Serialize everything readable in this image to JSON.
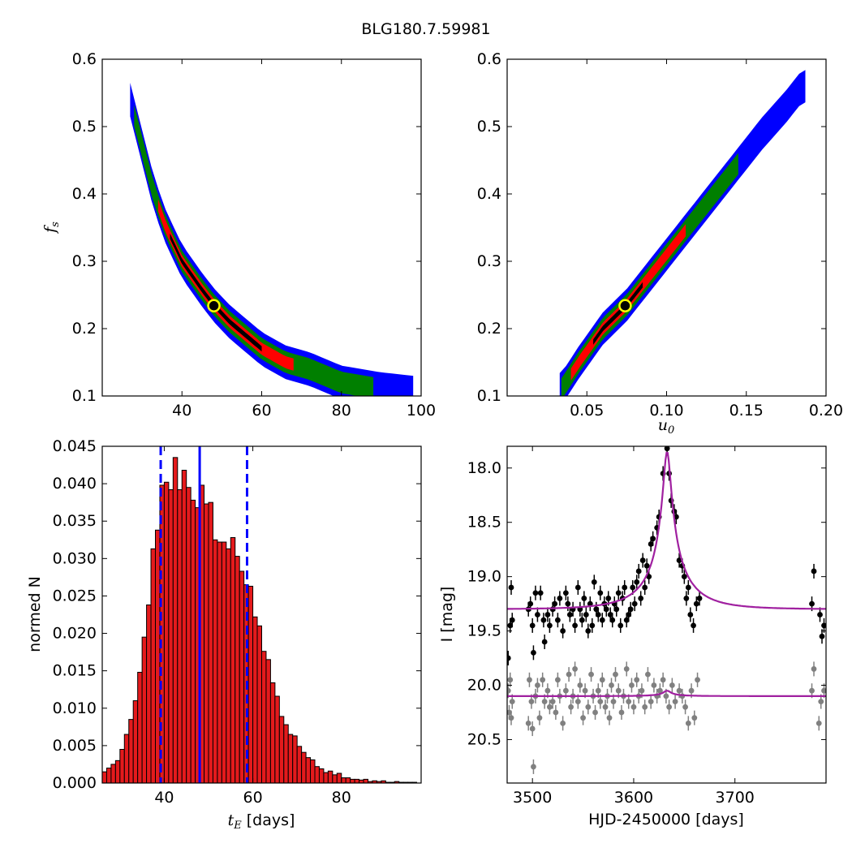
{
  "figure_title": "BLG180.7.59981",
  "colors": {
    "blue_region": "#0000ff",
    "green_region": "#007f00",
    "red_region": "#ff0000",
    "black_region": "#000000",
    "best_fit_marker_fill": "#000000",
    "best_fit_marker_edge": "#ffff00",
    "histogram_bar": "#e41a1c",
    "vline": "#0000ff",
    "model_curve": "#a020a0",
    "points_primary": "#000000",
    "points_secondary": "#808080"
  },
  "chart_data": [
    {
      "id": "fs_vs_tE",
      "type": "heatmap",
      "title": "",
      "xlabel": "",
      "ylabel": "f_s",
      "xlim": [
        20,
        100
      ],
      "ylim": [
        0.1,
        0.6
      ],
      "xticks": [
        40,
        60,
        80,
        100
      ],
      "yticks": [
        0.1,
        0.2,
        0.3,
        0.4,
        0.5,
        0.6
      ],
      "xticklabels": [
        "40",
        "60",
        "80",
        "100"
      ],
      "yticklabels": [
        "0.1",
        "0.2",
        "0.3",
        "0.4",
        "0.5",
        "0.6"
      ],
      "ridge": [
        [
          27,
          0.54
        ],
        [
          30,
          0.47
        ],
        [
          33,
          0.4
        ],
        [
          36,
          0.35
        ],
        [
          40,
          0.3
        ],
        [
          45,
          0.258
        ],
        [
          48,
          0.235
        ],
        [
          52,
          0.21
        ],
        [
          56,
          0.19
        ],
        [
          60,
          0.17
        ],
        [
          66,
          0.15
        ],
        [
          72,
          0.14
        ],
        [
          80,
          0.12
        ],
        [
          90,
          0.11
        ],
        [
          98,
          0.105
        ]
      ],
      "confidence_regions": [
        {
          "level": "blue",
          "x_range": [
            27,
            98
          ],
          "half_width": 0.025
        },
        {
          "level": "green",
          "x_range": [
            28,
            88
          ],
          "half_width": 0.016
        },
        {
          "level": "red",
          "x_range": [
            34,
            68
          ],
          "half_width": 0.009
        },
        {
          "level": "black",
          "x_range": [
            37,
            60
          ],
          "half_width": 0.004
        }
      ],
      "best_fit": {
        "x": 48,
        "y": 0.234
      }
    },
    {
      "id": "fs_vs_u0",
      "type": "heatmap",
      "title": "",
      "xlabel": "u_0",
      "ylabel": "",
      "xlim": [
        0.0,
        0.2
      ],
      "ylim": [
        0.1,
        0.6
      ],
      "xticks": [
        0.05,
        0.1,
        0.15,
        0.2
      ],
      "yticks": [
        0.1,
        0.2,
        0.3,
        0.4,
        0.5,
        0.6
      ],
      "xticklabels": [
        "0.05",
        "0.10",
        "0.15",
        "0.20"
      ],
      "yticklabels": [
        "0.1",
        "0.2",
        "0.3",
        "0.4",
        "0.5",
        "0.6"
      ],
      "ridge": [
        [
          0.034,
          0.11
        ],
        [
          0.045,
          0.15
        ],
        [
          0.06,
          0.2
        ],
        [
          0.075,
          0.235
        ],
        [
          0.09,
          0.28
        ],
        [
          0.105,
          0.325
        ],
        [
          0.12,
          0.37
        ],
        [
          0.14,
          0.43
        ],
        [
          0.16,
          0.49
        ],
        [
          0.175,
          0.53
        ],
        [
          0.185,
          0.56
        ]
      ],
      "confidence_regions": [
        {
          "level": "blue",
          "x_range": [
            0.033,
            0.187
          ],
          "half_width": 0.024
        },
        {
          "level": "green",
          "x_range": [
            0.034,
            0.145
          ],
          "half_width": 0.016
        },
        {
          "level": "red",
          "x_range": [
            0.04,
            0.112
          ],
          "half_width": 0.009
        },
        {
          "level": "black",
          "x_range": [
            0.054,
            0.085
          ],
          "half_width": 0.004
        }
      ],
      "best_fit": {
        "x": 0.074,
        "y": 0.234
      }
    },
    {
      "id": "tE_histogram",
      "type": "bar",
      "title": "",
      "xlabel": "t_E [days]",
      "ylabel": "normed N",
      "xlim": [
        26,
        98
      ],
      "ylim": [
        0.0,
        0.045
      ],
      "xticks": [
        40,
        60,
        80
      ],
      "yticks": [
        0.0,
        0.005,
        0.01,
        0.015,
        0.02,
        0.025,
        0.03,
        0.035,
        0.04,
        0.045
      ],
      "xticklabels": [
        "40",
        "60",
        "80"
      ],
      "yticklabels": [
        "0.000",
        "0.005",
        "0.010",
        "0.015",
        "0.020",
        "0.025",
        "0.030",
        "0.035",
        "0.040",
        "0.045"
      ],
      "bin_start": 26,
      "bin_width": 1,
      "values": [
        0.0015,
        0.002,
        0.0025,
        0.003,
        0.0045,
        0.0065,
        0.0085,
        0.011,
        0.0148,
        0.0195,
        0.0238,
        0.0313,
        0.0338,
        0.0398,
        0.0402,
        0.0392,
        0.0435,
        0.0392,
        0.0418,
        0.0395,
        0.0378,
        0.0368,
        0.0398,
        0.0373,
        0.0375,
        0.0325,
        0.0322,
        0.0322,
        0.0313,
        0.0328,
        0.0303,
        0.0283,
        0.0265,
        0.0263,
        0.0222,
        0.021,
        0.0176,
        0.0165,
        0.0134,
        0.0116,
        0.0089,
        0.0078,
        0.0065,
        0.0063,
        0.0049,
        0.0041,
        0.0034,
        0.0031,
        0.0022,
        0.0019,
        0.0014,
        0.0016,
        0.0011,
        0.0013,
        0.0007,
        0.0007,
        0.0005,
        0.0005,
        0.0004,
        0.0005,
        0.0002,
        0.0003,
        0.0002,
        0.0003,
        0.0001,
        0.0001,
        0.0002,
        0.0001,
        0.0001,
        0.0001,
        0.0001
      ],
      "vlines": [
        {
          "x": 48,
          "style": "solid"
        },
        {
          "x": 39.2,
          "style": "dashed"
        },
        {
          "x": 58.7,
          "style": "dashed"
        }
      ]
    },
    {
      "id": "light_curve",
      "type": "scatter",
      "title": "",
      "xlabel": "HJD-2450000 [days]",
      "ylabel": "I [mag]",
      "xlim": [
        3475,
        3790
      ],
      "ylim": [
        20.9,
        17.8
      ],
      "xticks": [
        3500,
        3600,
        3700
      ],
      "yticks": [
        18.0,
        18.5,
        19.0,
        19.5,
        20.0,
        20.5
      ],
      "xticklabels": [
        "3500",
        "3600",
        "3700"
      ],
      "yticklabels": [
        "18.0",
        "18.5",
        "19.0",
        "19.5",
        "20.0",
        "20.5"
      ],
      "series": [
        {
          "color": "black",
          "model": {
            "t0": 3633,
            "tE": 48,
            "u0": 0.074,
            "baseline": 19.3,
            "peak": 17.85
          },
          "points": [
            [
              3476,
              19.75
            ],
            [
              3478,
              19.45
            ],
            [
              3479,
              19.1
            ],
            [
              3480,
              19.4
            ],
            [
              3496,
              19.3
            ],
            [
              3498,
              19.25
            ],
            [
              3500,
              19.45
            ],
            [
              3501,
              19.7
            ],
            [
              3503,
              19.15
            ],
            [
              3505,
              19.35
            ],
            [
              3508,
              19.15
            ],
            [
              3511,
              19.4
            ],
            [
              3512,
              19.6
            ],
            [
              3515,
              19.35
            ],
            [
              3517,
              19.45
            ],
            [
              3520,
              19.3
            ],
            [
              3522,
              19.25
            ],
            [
              3525,
              19.4
            ],
            [
              3527,
              19.2
            ],
            [
              3530,
              19.5
            ],
            [
              3533,
              19.15
            ],
            [
              3535,
              19.25
            ],
            [
              3537,
              19.35
            ],
            [
              3540,
              19.3
            ],
            [
              3542,
              19.45
            ],
            [
              3545,
              19.1
            ],
            [
              3547,
              19.3
            ],
            [
              3549,
              19.4
            ],
            [
              3551,
              19.2
            ],
            [
              3553,
              19.35
            ],
            [
              3555,
              19.5
            ],
            [
              3557,
              19.25
            ],
            [
              3559,
              19.45
            ],
            [
              3561,
              19.05
            ],
            [
              3563,
              19.3
            ],
            [
              3565,
              19.35
            ],
            [
              3567,
              19.15
            ],
            [
              3569,
              19.4
            ],
            [
              3571,
              19.25
            ],
            [
              3573,
              19.3
            ],
            [
              3575,
              19.2
            ],
            [
              3577,
              19.35
            ],
            [
              3579,
              19.4
            ],
            [
              3581,
              19.25
            ],
            [
              3583,
              19.3
            ],
            [
              3585,
              19.15
            ],
            [
              3587,
              19.45
            ],
            [
              3589,
              19.2
            ],
            [
              3591,
              19.1
            ],
            [
              3593,
              19.4
            ],
            [
              3595,
              19.35
            ],
            [
              3597,
              19.3
            ],
            [
              3599,
              19.1
            ],
            [
              3601,
              19.25
            ],
            [
              3603,
              19.05
            ],
            [
              3605,
              18.95
            ],
            [
              3607,
              19.2
            ],
            [
              3609,
              18.85
            ],
            [
              3611,
              19.1
            ],
            [
              3613,
              18.9
            ],
            [
              3615,
              19.0
            ],
            [
              3617,
              18.7
            ],
            [
              3619,
              18.65
            ],
            [
              3623,
              18.55
            ],
            [
              3625,
              18.45
            ],
            [
              3629,
              18.05
            ],
            [
              3633,
              17.82
            ],
            [
              3635,
              18.05
            ],
            [
              3637,
              18.3
            ],
            [
              3640,
              18.4
            ],
            [
              3642,
              18.45
            ],
            [
              3645,
              18.85
            ],
            [
              3648,
              18.9
            ],
            [
              3650,
              19.0
            ],
            [
              3652,
              19.2
            ],
            [
              3654,
              19.1
            ],
            [
              3656,
              19.35
            ],
            [
              3659,
              19.45
            ],
            [
              3662,
              19.25
            ],
            [
              3665,
              19.2
            ],
            [
              3776,
              19.25
            ],
            [
              3778,
              18.95
            ],
            [
              3784,
              19.35
            ],
            [
              3786,
              19.55
            ],
            [
              3788,
              19.45
            ]
          ]
        },
        {
          "color": "gray",
          "model": {
            "t0": 3633,
            "tE": 48,
            "u0": 0.074,
            "baseline": 20.1,
            "amp": 0.004
          },
          "points": [
            [
              3476,
              20.05
            ],
            [
              3477,
              20.25
            ],
            [
              3478,
              19.95
            ],
            [
              3479,
              20.3
            ],
            [
              3480,
              20.15
            ],
            [
              3496,
              20.35
            ],
            [
              3497,
              19.95
            ],
            [
              3499,
              20.15
            ],
            [
              3500,
              20.4
            ],
            [
              3501,
              20.75
            ],
            [
              3503,
              20.1
            ],
            [
              3505,
              20.0
            ],
            [
              3507,
              20.3
            ],
            [
              3510,
              19.95
            ],
            [
              3512,
              20.15
            ],
            [
              3515,
              20.05
            ],
            [
              3517,
              20.2
            ],
            [
              3520,
              20.15
            ],
            [
              3523,
              20.25
            ],
            [
              3525,
              19.95
            ],
            [
              3527,
              20.1
            ],
            [
              3530,
              20.35
            ],
            [
              3533,
              20.05
            ],
            [
              3536,
              19.9
            ],
            [
              3538,
              20.2
            ],
            [
              3540,
              20.1
            ],
            [
              3542,
              19.85
            ],
            [
              3545,
              20.15
            ],
            [
              3547,
              20.0
            ],
            [
              3550,
              20.3
            ],
            [
              3552,
              20.05
            ],
            [
              3555,
              20.2
            ],
            [
              3558,
              19.9
            ],
            [
              3560,
              20.1
            ],
            [
              3562,
              20.25
            ],
            [
              3565,
              20.05
            ],
            [
              3567,
              20.15
            ],
            [
              3569,
              19.95
            ],
            [
              3572,
              20.2
            ],
            [
              3574,
              20.1
            ],
            [
              3576,
              20.3
            ],
            [
              3578,
              20.0
            ],
            [
              3580,
              20.15
            ],
            [
              3582,
              19.9
            ],
            [
              3585,
              20.05
            ],
            [
              3588,
              20.25
            ],
            [
              3590,
              20.1
            ],
            [
              3593,
              19.85
            ],
            [
              3595,
              20.15
            ],
            [
              3598,
              20.0
            ],
            [
              3600,
              20.2
            ],
            [
              3603,
              19.95
            ],
            [
              3605,
              20.1
            ],
            [
              3608,
              20.05
            ],
            [
              3611,
              20.2
            ],
            [
              3614,
              19.9
            ],
            [
              3617,
              20.15
            ],
            [
              3620,
              20.0
            ],
            [
              3623,
              20.1
            ],
            [
              3626,
              20.05
            ],
            [
              3629,
              19.95
            ],
            [
              3632,
              20.1
            ],
            [
              3635,
              20.2
            ],
            [
              3638,
              20.0
            ],
            [
              3641,
              20.15
            ],
            [
              3645,
              20.05
            ],
            [
              3648,
              20.1
            ],
            [
              3651,
              20.2
            ],
            [
              3654,
              20.35
            ],
            [
              3657,
              20.05
            ],
            [
              3660,
              20.3
            ],
            [
              3663,
              19.95
            ],
            [
              3776,
              20.05
            ],
            [
              3778,
              19.85
            ],
            [
              3783,
              20.35
            ],
            [
              3785,
              20.15
            ],
            [
              3788,
              20.05
            ]
          ]
        }
      ]
    }
  ]
}
